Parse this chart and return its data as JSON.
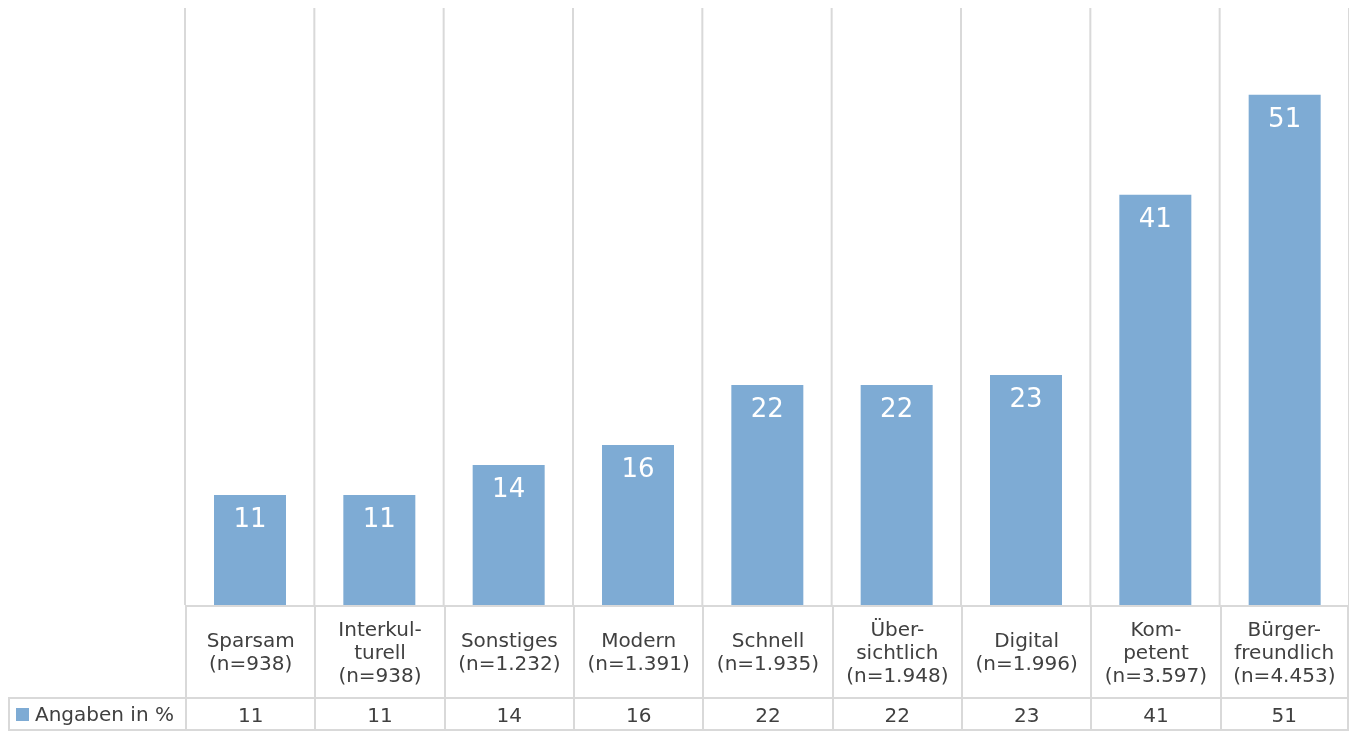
{
  "chart_data": {
    "type": "bar",
    "categories": [
      "Sparsam\n(n=938)",
      "Interkul-\nturell\n(n=938)",
      "Sonstiges\n(n=1.232)",
      "Modern\n(n=1.391)",
      "Schnell\n(n=1.935)",
      "Über-\nsichtlich\n(n=1.948)",
      "Digital\n(n=1.996)",
      "Kom-\npetent\n(n=3.597)",
      "Bürger-\nfreundlich\n(n=4.453)"
    ],
    "series": [
      {
        "name": "Angaben in %",
        "color": "#7eabd4",
        "values": [
          11,
          11,
          14,
          16,
          22,
          22,
          23,
          41,
          51
        ]
      }
    ],
    "annotations": [
      "11",
      "11",
      "14",
      "16",
      "22",
      "22",
      "23",
      "41",
      "51"
    ],
    "data_labels": true,
    "grid": "x",
    "legend": "bottom"
  }
}
